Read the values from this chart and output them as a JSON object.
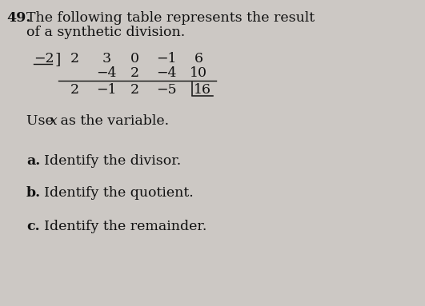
{
  "background_color": "#ccc8c4",
  "problem_number": "49.",
  "title_line1": "The following table represents the result",
  "title_line2": "of a synthetic division.",
  "divisor_label": "−2",
  "row1": [
    "2",
    "3",
    "0",
    "−1",
    "6"
  ],
  "row2": [
    "−4",
    "2",
    "−4",
    "10"
  ],
  "row3": [
    "2",
    "−1",
    "2",
    "−5",
    "16"
  ],
  "item_a_bold": "a.",
  "item_a_text": "Identify the divisor.",
  "item_b_bold": "b.",
  "item_b_text": "Identify the quotient.",
  "item_c_bold": "c.",
  "item_c_text": "Identify the remainder.",
  "font_size_title": 12.5,
  "font_size_body": 12.5,
  "font_size_table": 12.5,
  "text_color": "#111111"
}
